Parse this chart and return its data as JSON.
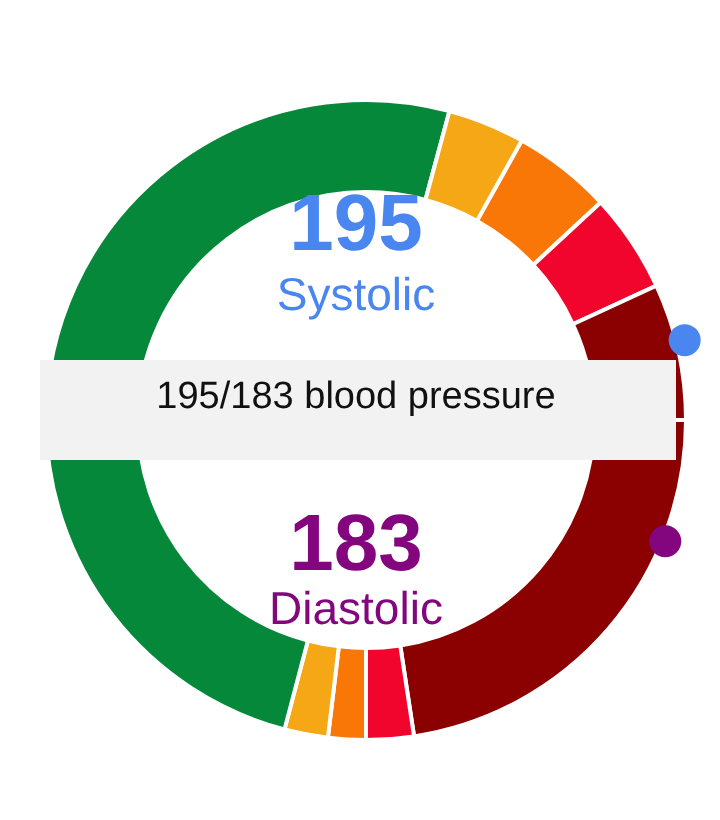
{
  "chart_data": {
    "type": "donut",
    "title": "195/183 blood pressure",
    "annotations": [
      "195",
      "Systolic",
      "183",
      "Diastolic"
    ],
    "categories": [
      null,
      null,
      null,
      null,
      null,
      null,
      null,
      null,
      null,
      null
    ],
    "values": [
      29.2,
      3.9,
      5.0,
      5.0,
      6.9,
      22.6,
      2.4,
      1.9,
      2.2,
      20.9
    ],
    "colors": [
      "#05883a",
      "#f5a716",
      "#f97706",
      "#f2052c",
      "#8b0000",
      "#8b0000",
      "#f2052c",
      "#f97706",
      "#f5a716",
      "#05883a"
    ]
  }
}
